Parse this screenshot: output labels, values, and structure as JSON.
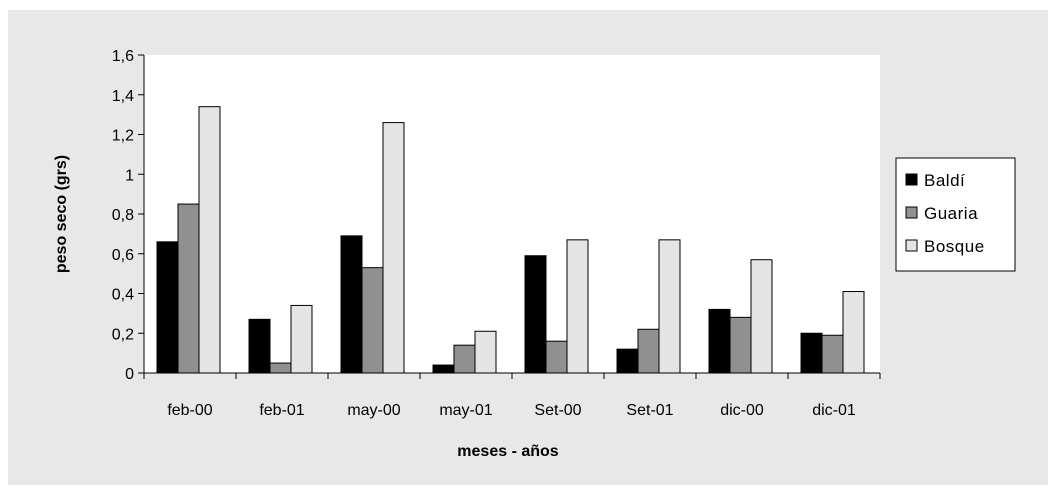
{
  "chart_data": {
    "type": "bar",
    "xlabel": "meses - años",
    "ylabel": "peso seco (grs)",
    "ylim": [
      0,
      1.6
    ],
    "y_ticks": [
      "0",
      "0,2",
      "0,4",
      "0,6",
      "0,8",
      "1",
      "1,2",
      "1,4",
      "1,6"
    ],
    "grid": false,
    "legend_position": "right",
    "categories": [
      "feb-00",
      "feb-01",
      "may-00",
      "may-01",
      "Set-00",
      "Set-01",
      "dic-00",
      "dic-01"
    ],
    "series": [
      {
        "name": "Baldí",
        "color": "#000000",
        "values": [
          0.66,
          0.27,
          0.69,
          0.04,
          0.59,
          0.12,
          0.32,
          0.2
        ]
      },
      {
        "name": "Guaria",
        "color": "#909090",
        "values": [
          0.85,
          0.05,
          0.53,
          0.14,
          0.16,
          0.22,
          0.28,
          0.19
        ]
      },
      {
        "name": "Bosque",
        "color": "#e4e4e4",
        "values": [
          1.34,
          0.34,
          1.26,
          0.21,
          0.67,
          0.67,
          0.57,
          0.41
        ]
      }
    ]
  }
}
